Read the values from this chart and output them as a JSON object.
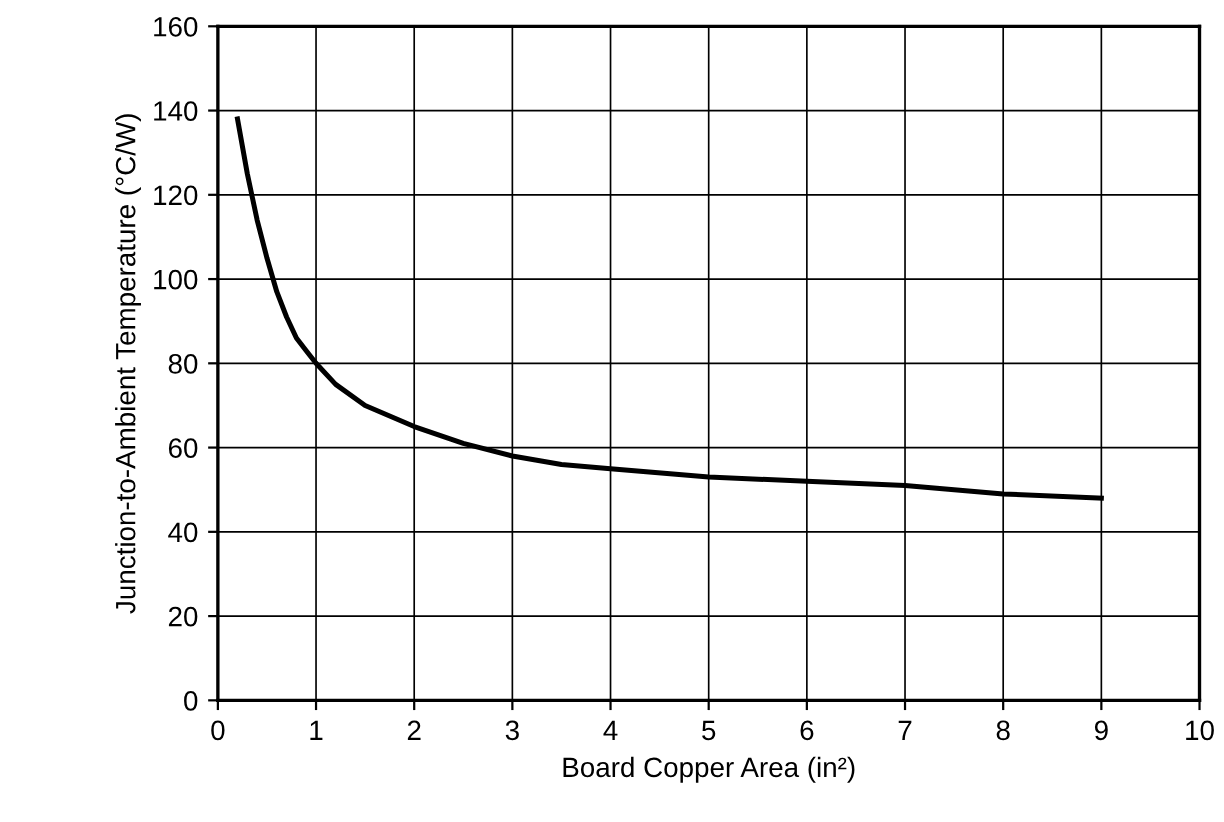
{
  "chart_data": {
    "type": "line",
    "xlabel": "Board Copper Area (in²)",
    "ylabel": "Junction-to-Ambient Temperature (°C/W)",
    "x": [
      0.2,
      0.3,
      0.4,
      0.5,
      0.6,
      0.7,
      0.8,
      0.9,
      1,
      1.2,
      1.5,
      2,
      2.5,
      3,
      3.5,
      4,
      5,
      6,
      7,
      8,
      9
    ],
    "series": [
      {
        "color": "#000000",
        "values": [
          138,
          125,
          114,
          105,
          97,
          91,
          86,
          83,
          80,
          75,
          70,
          65,
          61,
          58,
          56,
          55,
          53,
          52,
          51,
          49,
          48
        ]
      }
    ],
    "xlim": [
      0,
      10
    ],
    "xticks": [
      0,
      1,
      2,
      3,
      4,
      5,
      6,
      7,
      8,
      9,
      10
    ],
    "ylim": [
      0,
      160
    ],
    "yticks": [
      0,
      20,
      40,
      60,
      80,
      100,
      120,
      140,
      160
    ],
    "grid": true,
    "marker": "none",
    "line_style": "solid",
    "legend": false
  }
}
